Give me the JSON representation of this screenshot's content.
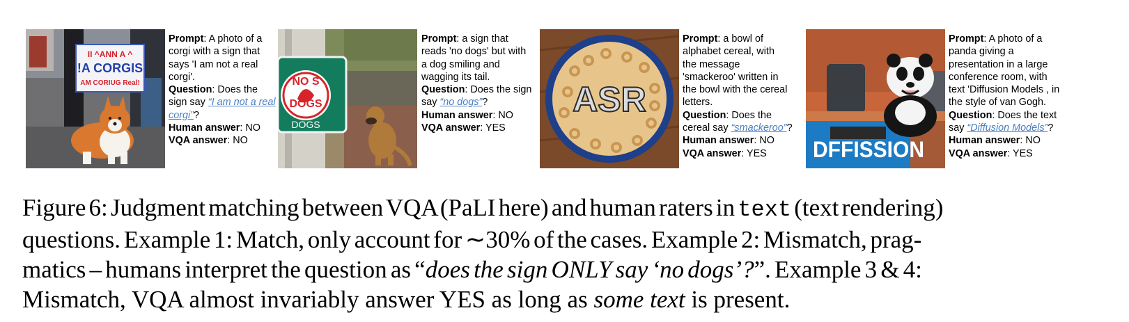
{
  "labels": {
    "prompt": "Prompt",
    "question": "Question",
    "human": "Human answer",
    "vqa": "VQA answer"
  },
  "examples": [
    {
      "image": "corgi-with-sign",
      "sign_lines": [
        "II ^ANN A ^",
        "!A CORGIS",
        "AM CORIUG Real!"
      ],
      "prompt_lines": [
        ": A photo of a",
        "corgi with a sign that",
        "says 'I am not a real",
        "corgi'."
      ],
      "question_head": ": Does the",
      "question_pre": "sign say ",
      "question_quote_1": "“I am not a real",
      "question_quote_2": "corgi”",
      "question_post": "?",
      "human": ": NO",
      "vqa": ": NO"
    },
    {
      "image": "no-dogs-sign-with-dog",
      "sign_lines": [
        "NO S",
        "DOGS",
        "DOGS"
      ],
      "prompt_lines": [
        ": a sign that",
        "reads 'no dogs' but with",
        "a dog smiling and",
        "wagging its tail."
      ],
      "question_head": ": Does the sign",
      "question_pre": "say ",
      "question_quote_1": "“no dogs”",
      "question_post": "?",
      "human": ": NO",
      "vqa": ": YES"
    },
    {
      "image": "alphabet-cereal-bowl",
      "sign_lines": [
        "ASR"
      ],
      "prompt_lines": [
        ": a bowl of",
        "alphabet cereal, with",
        "the message",
        "'smackeroo' written in",
        "the bowl with the cereal",
        "letters."
      ],
      "question_head": ": Does the",
      "question_pre": "cereal say ",
      "question_quote_1": "“smackeroo”",
      "question_post": "?",
      "human": ": NO",
      "vqa": ": YES"
    },
    {
      "image": "panda-presentation",
      "sign_lines": [
        "DFFISSION"
      ],
      "prompt_lines": [
        ": A photo of a",
        "panda giving a",
        "presentation in a large",
        "conference room, with",
        "text 'Diffusion Models , in",
        "the style of van Gogh."
      ],
      "question_head": ": Does the text",
      "question_pre": "say ",
      "question_quote_1": "“Diffusion Models”",
      "question_post": "?",
      "human": ": NO",
      "vqa": ": YES"
    }
  ],
  "caption": {
    "l1_a": "Figure 6: Judgment matching between VQA (PaLI here) and human raters in ",
    "l1_code": "text",
    "l1_b": " (text rendering)",
    "l2": "questions.  Example 1: Match, only account for ∼30% of the cases.  Example 2: Mismatch, prag-",
    "l3_a": "matics – humans interpret the question as “",
    "l3_i": "does the sign ONLY say ‘no dogs’?",
    "l3_b": "”.  Example 3 & 4:",
    "l4_a": "Mismatch, VQA almost invariably answer YES as long as ",
    "l4_i": "some text",
    "l4_b": " is present."
  }
}
